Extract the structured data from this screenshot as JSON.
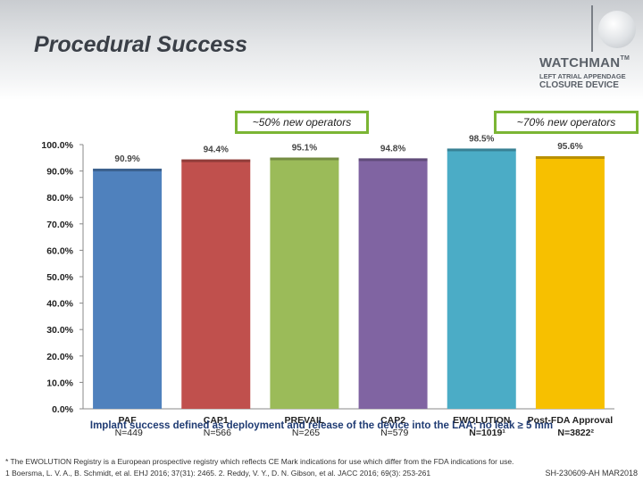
{
  "slide": {
    "title": "Procedural Success",
    "brand": {
      "name": "WATCHMAN",
      "tm": "TM",
      "line1": "LEFT ATRIAL APPENDAGE",
      "line2": "CLOSURE DEVICE"
    },
    "callouts": [
      "~50% new operators",
      "~70% new operators"
    ],
    "caption": "Implant success defined as deployment and release of the device into the LAA; no leak ≥ 5 mm",
    "footnote1": "* The EWOLUTION Registry is a European prospective registry which reflects CE Mark indications for use which differ from the FDA indications for use.",
    "footnote2": "1 Boersma, L. V. A., B. Schmidt, et al. EHJ 2016; 37(31): 2465. 2. Reddy, V. Y., D. N. Gibson, et al. JACC 2016; 69(3): 253-261",
    "code": "SH-230609-AH  MAR2018"
  },
  "chart_data": {
    "type": "bar",
    "categories": [
      "PAF",
      "CAP1",
      "PREVAIL",
      "CAP2",
      "EWOLUTION",
      "Post-FDA Approval"
    ],
    "sublabels": [
      "N=449",
      "N=566",
      "N=265",
      "N=579",
      "N=1019¹",
      "N=3822²"
    ],
    "values": [
      90.9,
      94.4,
      95.1,
      94.8,
      98.5,
      95.6
    ],
    "value_labels": [
      "90.9%",
      "94.4%",
      "95.1%",
      "94.8%",
      "98.5%",
      "95.6%"
    ],
    "colors": [
      "#4f81bd",
      "#c0504d",
      "#9bbb59",
      "#8064a2",
      "#4bacc6",
      "#f7c000"
    ],
    "bold": [
      false,
      false,
      false,
      false,
      true,
      true
    ],
    "yticks": [
      "0.0%",
      "10.0%",
      "20.0%",
      "30.0%",
      "40.0%",
      "50.0%",
      "60.0%",
      "70.0%",
      "80.0%",
      "90.0%",
      "100.0%"
    ],
    "ylim": [
      0,
      100
    ],
    "grid": false,
    "legend": "none"
  }
}
